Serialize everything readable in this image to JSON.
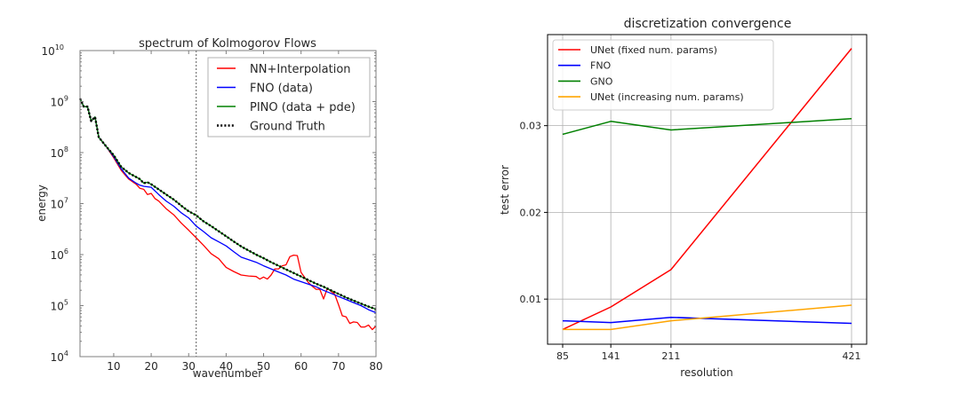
{
  "chart_data": [
    {
      "type": "line",
      "title": "spectrum of Kolmogorov Flows",
      "xlabel": "wavenumber",
      "ylabel": "energy",
      "yscale": "log",
      "xlim": [
        1,
        80
      ],
      "ylim": [
        10000,
        10000000000
      ],
      "xticks": [
        10,
        20,
        30,
        40,
        50,
        60,
        70,
        80
      ],
      "xtick_labels": [
        "10",
        "20",
        "30",
        "40",
        "50",
        "60",
        "70",
        "80"
      ],
      "yticks": [
        10000,
        100000,
        1000000,
        10000000,
        100000000,
        1000000000,
        10000000000
      ],
      "ytick_labels": [
        {
          "base": "10",
          "exp": "4"
        },
        {
          "base": "10",
          "exp": "5"
        },
        {
          "base": "10",
          "exp": "6"
        },
        {
          "base": "10",
          "exp": "7"
        },
        {
          "base": "10",
          "exp": "8"
        },
        {
          "base": "10",
          "exp": "9"
        },
        {
          "base": "10",
          "exp": "10"
        }
      ],
      "grid": false,
      "legend_position": "top-right",
      "vline": {
        "x": 32,
        "style": "dotted",
        "color": "#808080"
      },
      "series": [
        {
          "name": "NN+Interpolation",
          "color": "#ff0000",
          "style": "solid",
          "log10_points": [
            [
              1,
              9.06
            ],
            [
              2,
              8.9
            ],
            [
              3,
              8.9
            ],
            [
              4,
              8.62
            ],
            [
              5,
              8.7
            ],
            [
              6,
              8.3
            ],
            [
              8,
              8.12
            ],
            [
              10,
              7.9
            ],
            [
              12,
              7.65
            ],
            [
              14,
              7.48
            ],
            [
              16,
              7.38
            ],
            [
              17,
              7.3
            ],
            [
              18,
              7.28
            ],
            [
              19,
              7.18
            ],
            [
              20,
              7.2
            ],
            [
              21,
              7.1
            ],
            [
              22,
              7.05
            ],
            [
              24,
              6.9
            ],
            [
              26,
              6.78
            ],
            [
              28,
              6.62
            ],
            [
              30,
              6.48
            ],
            [
              32,
              6.33
            ],
            [
              34,
              6.18
            ],
            [
              36,
              6.02
            ],
            [
              38,
              5.92
            ],
            [
              40,
              5.75
            ],
            [
              42,
              5.67
            ],
            [
              44,
              5.6
            ],
            [
              46,
              5.58
            ],
            [
              48,
              5.57
            ],
            [
              49,
              5.52
            ],
            [
              50,
              5.56
            ],
            [
              51,
              5.52
            ],
            [
              52,
              5.6
            ],
            [
              53,
              5.72
            ],
            [
              54,
              5.72
            ],
            [
              55,
              5.78
            ],
            [
              56,
              5.8
            ],
            [
              57,
              5.96
            ],
            [
              58,
              5.99
            ],
            [
              59,
              5.98
            ],
            [
              60,
              5.65
            ],
            [
              61,
              5.55
            ],
            [
              62,
              5.45
            ],
            [
              63,
              5.38
            ],
            [
              64,
              5.32
            ],
            [
              65,
              5.32
            ],
            [
              66,
              5.13
            ],
            [
              67,
              5.34
            ],
            [
              68,
              5.28
            ],
            [
              69,
              5.22
            ],
            [
              70,
              5.02
            ],
            [
              71,
              4.8
            ],
            [
              72,
              4.78
            ],
            [
              73,
              4.65
            ],
            [
              74,
              4.68
            ],
            [
              75,
              4.67
            ],
            [
              76,
              4.58
            ],
            [
              77,
              4.58
            ],
            [
              78,
              4.62
            ],
            [
              79,
              4.53
            ],
            [
              80,
              4.6
            ]
          ]
        },
        {
          "name": "FNO (data)",
          "color": "#0000ff",
          "style": "solid",
          "log10_points": [
            [
              1,
              9.06
            ],
            [
              2,
              8.9
            ],
            [
              3,
              8.9
            ],
            [
              4,
              8.62
            ],
            [
              5,
              8.7
            ],
            [
              6,
              8.3
            ],
            [
              8,
              8.12
            ],
            [
              10,
              7.92
            ],
            [
              12,
              7.68
            ],
            [
              14,
              7.5
            ],
            [
              16,
              7.4
            ],
            [
              17,
              7.36
            ],
            [
              18,
              7.34
            ],
            [
              20,
              7.32
            ],
            [
              22,
              7.18
            ],
            [
              24,
              7.05
            ],
            [
              26,
              6.95
            ],
            [
              28,
              6.82
            ],
            [
              30,
              6.72
            ],
            [
              32,
              6.56
            ],
            [
              34,
              6.45
            ],
            [
              36,
              6.33
            ],
            [
              38,
              6.25
            ],
            [
              40,
              6.17
            ],
            [
              42,
              6.06
            ],
            [
              44,
              5.95
            ],
            [
              46,
              5.9
            ],
            [
              48,
              5.85
            ],
            [
              50,
              5.78
            ],
            [
              52,
              5.72
            ],
            [
              54,
              5.66
            ],
            [
              56,
              5.6
            ],
            [
              58,
              5.52
            ],
            [
              60,
              5.47
            ],
            [
              62,
              5.42
            ],
            [
              64,
              5.37
            ],
            [
              66,
              5.3
            ],
            [
              68,
              5.24
            ],
            [
              70,
              5.18
            ],
            [
              72,
              5.12
            ],
            [
              74,
              5.06
            ],
            [
              76,
              5.0
            ],
            [
              78,
              4.92
            ],
            [
              80,
              4.86
            ]
          ]
        },
        {
          "name": "PINO (data + pde)",
          "color": "#008000",
          "style": "solid",
          "log10_points": [
            [
              1,
              9.06
            ],
            [
              2,
              8.9
            ],
            [
              3,
              8.9
            ],
            [
              4,
              8.62
            ],
            [
              5,
              8.7
            ],
            [
              6,
              8.3
            ],
            [
              8,
              8.12
            ],
            [
              10,
              7.95
            ],
            [
              12,
              7.72
            ],
            [
              14,
              7.6
            ],
            [
              16,
              7.52
            ],
            [
              17,
              7.48
            ],
            [
              18,
              7.4
            ],
            [
              19,
              7.42
            ],
            [
              20,
              7.38
            ],
            [
              22,
              7.28
            ],
            [
              24,
              7.18
            ],
            [
              26,
              7.08
            ],
            [
              28,
              6.96
            ],
            [
              30,
              6.85
            ],
            [
              32,
              6.77
            ],
            [
              34,
              6.65
            ],
            [
              36,
              6.56
            ],
            [
              38,
              6.46
            ],
            [
              40,
              6.36
            ],
            [
              42,
              6.26
            ],
            [
              44,
              6.16
            ],
            [
              46,
              6.08
            ],
            [
              48,
              6.0
            ],
            [
              50,
              5.93
            ],
            [
              52,
              5.85
            ],
            [
              54,
              5.78
            ],
            [
              56,
              5.71
            ],
            [
              58,
              5.64
            ],
            [
              60,
              5.57
            ],
            [
              62,
              5.5
            ],
            [
              64,
              5.43
            ],
            [
              66,
              5.37
            ],
            [
              68,
              5.3
            ],
            [
              70,
              5.23
            ],
            [
              72,
              5.16
            ],
            [
              74,
              5.1
            ],
            [
              76,
              5.04
            ],
            [
              78,
              4.98
            ],
            [
              80,
              4.93
            ]
          ]
        },
        {
          "name": "Ground Truth",
          "color": "#000000",
          "style": "dotted",
          "log10_points": [
            [
              1,
              9.06
            ],
            [
              2,
              8.9
            ],
            [
              3,
              8.9
            ],
            [
              4,
              8.62
            ],
            [
              5,
              8.7
            ],
            [
              6,
              8.3
            ],
            [
              8,
              8.12
            ],
            [
              10,
              7.95
            ],
            [
              12,
              7.72
            ],
            [
              14,
              7.6
            ],
            [
              16,
              7.52
            ],
            [
              17,
              7.48
            ],
            [
              18,
              7.4
            ],
            [
              19,
              7.42
            ],
            [
              20,
              7.38
            ],
            [
              22,
              7.28
            ],
            [
              24,
              7.18
            ],
            [
              26,
              7.08
            ],
            [
              28,
              6.96
            ],
            [
              30,
              6.85
            ],
            [
              32,
              6.77
            ],
            [
              34,
              6.65
            ],
            [
              36,
              6.56
            ],
            [
              38,
              6.46
            ],
            [
              40,
              6.36
            ],
            [
              42,
              6.26
            ],
            [
              44,
              6.16
            ],
            [
              46,
              6.08
            ],
            [
              48,
              6.0
            ],
            [
              50,
              5.93
            ],
            [
              52,
              5.85
            ],
            [
              54,
              5.78
            ],
            [
              56,
              5.71
            ],
            [
              58,
              5.64
            ],
            [
              60,
              5.57
            ],
            [
              62,
              5.5
            ],
            [
              64,
              5.43
            ],
            [
              66,
              5.37
            ],
            [
              68,
              5.3
            ],
            [
              70,
              5.23
            ],
            [
              72,
              5.16
            ],
            [
              74,
              5.1
            ],
            [
              76,
              5.04
            ],
            [
              78,
              4.98
            ],
            [
              80,
              4.93
            ]
          ]
        }
      ]
    },
    {
      "type": "line",
      "title": "discretization convergence",
      "xlabel": "resolution",
      "ylabel": "test error",
      "x": [
        85,
        141,
        211,
        421
      ],
      "xlim": [
        80,
        435
      ],
      "ylim": [
        0.0048,
        0.0405
      ],
      "xticks": [
        85,
        141,
        211,
        421
      ],
      "xtick_labels": [
        "85",
        "141",
        "211",
        "421"
      ],
      "yticks": [
        0.01,
        0.02,
        0.03
      ],
      "ytick_labels": [
        "0.01",
        "0.02",
        "0.03"
      ],
      "grid": true,
      "legend_position": "top-left",
      "series": [
        {
          "name": "UNet (fixed num. params)",
          "color": "#ff0000",
          "values": [
            0.0065,
            0.0091,
            0.0134,
            0.0389
          ]
        },
        {
          "name": "FNO",
          "color": "#0000ff",
          "values": [
            0.0075,
            0.0073,
            0.0079,
            0.0072
          ]
        },
        {
          "name": "GNO",
          "color": "#008000",
          "values": [
            0.029,
            0.0305,
            0.0295,
            0.0308
          ]
        },
        {
          "name": "UNet (increasing num. params)",
          "color": "#ffa500",
          "values": [
            0.0065,
            0.0065,
            0.0075,
            0.0093
          ]
        }
      ]
    }
  ]
}
